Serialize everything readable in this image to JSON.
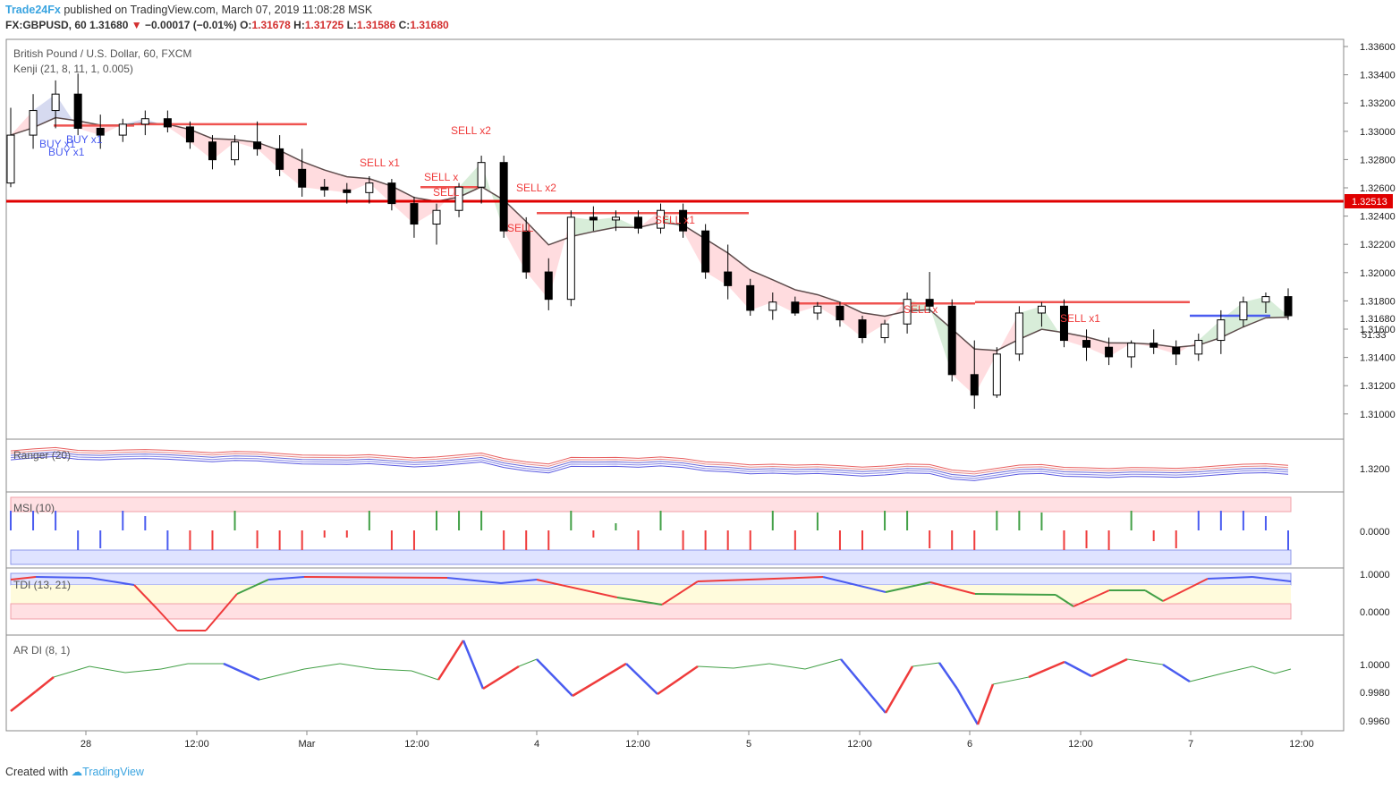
{
  "header": {
    "publisher": "Trade24Fx",
    "published_text": "published on TradingView.com, March 07, 2019 11:08:28 MSK",
    "symbol": "FX:GBPUSD, 60",
    "price": "1.31680",
    "change": "−0.00017 (−0.01%)",
    "o_label": "O:",
    "o": "1.31678",
    "h_label": "H:",
    "h": "1.31725",
    "l_label": "L:",
    "l": "1.31586",
    "c_label": "C:",
    "c": "1.31680"
  },
  "main_panel": {
    "title": "British Pound / U.S. Dollar, 60, FXCM",
    "indicator": "Kenji (21, 8, 11, 1, 0.005)"
  },
  "indicators": {
    "ranger": "Ranger (20)",
    "msi": "MSI (10)",
    "tdi": "TDI (13, 21)",
    "ardi": "AR DI (8, 1)"
  },
  "price_axis": {
    "labels": [
      "1.33600",
      "1.33400",
      "1.33200",
      "1.33000",
      "1.32800",
      "1.32600",
      "1.32400",
      "1.32200",
      "1.32000",
      "1.31800",
      "1.31600",
      "1.31400",
      "1.31200",
      "1.31000"
    ],
    "current": "1.31680",
    "countdown": "51:33",
    "support_label": "1.32513"
  },
  "sub_axes": {
    "ranger": [
      "1.3200"
    ],
    "msi": [
      "0.0000"
    ],
    "tdi": [
      "1.0000",
      "0.0000"
    ],
    "ardi": [
      "1.0000",
      "0.9980",
      "0.9960"
    ]
  },
  "time_axis": [
    "28",
    "12:00",
    "Mar",
    "12:00",
    "4",
    "12:00",
    "5",
    "12:00",
    "6",
    "12:00",
    "7",
    "12:00"
  ],
  "signals": [
    {
      "text": "BUY x1"
    },
    {
      "text": "BUY x1"
    },
    {
      "text": "BUY x1"
    },
    {
      "text": "SELL x1"
    },
    {
      "text": "SELL x"
    },
    {
      "text": "SELL"
    },
    {
      "text": "SELL x2"
    },
    {
      "text": "SELL x2"
    },
    {
      "text": "SELL"
    },
    {
      "text": "SELL x1"
    },
    {
      "text": "SELL x"
    },
    {
      "text": "SELL x1"
    }
  ],
  "footer": {
    "created_with": "Created with",
    "brand": "TradingView"
  },
  "colors": {
    "up_candle": "#ffffff",
    "down_candle": "#000000",
    "support_line": "#e00000",
    "resistance": "#ef5350",
    "buy_band": "#c5cae9",
    "sell_band": "#ffcdd2",
    "green_band": "#c8e6c9",
    "blue": "#4a5cf0",
    "red": "#ef3b3b",
    "green": "#43a047"
  },
  "chart_data": {
    "type": "candlestick",
    "title": "British Pound / U.S. Dollar, 60, FXCM",
    "ylim": [
      1.3085,
      1.337
    ],
    "support_level": 1.32513,
    "current_price": 1.3168,
    "xlabel": "",
    "ylabel": "",
    "ohlc_approx": [
      [
        1.3265,
        1.332,
        1.3262,
        1.33
      ],
      [
        1.33,
        1.333,
        1.329,
        1.3318
      ],
      [
        1.3318,
        1.334,
        1.3305,
        1.333
      ],
      [
        1.333,
        1.3345,
        1.33,
        1.3305
      ],
      [
        1.3305,
        1.3315,
        1.329,
        1.33
      ],
      [
        1.33,
        1.3312,
        1.3295,
        1.3308
      ],
      [
        1.3308,
        1.3318,
        1.33,
        1.3312
      ],
      [
        1.3312,
        1.3318,
        1.3302,
        1.3306
      ],
      [
        1.3306,
        1.331,
        1.329,
        1.3295
      ],
      [
        1.3295,
        1.33,
        1.3275,
        1.3282
      ],
      [
        1.3282,
        1.33,
        1.3278,
        1.3295
      ],
      [
        1.3295,
        1.331,
        1.3285,
        1.329
      ],
      [
        1.329,
        1.33,
        1.327,
        1.3275
      ],
      [
        1.3275,
        1.329,
        1.3255,
        1.3262
      ],
      [
        1.3262,
        1.3268,
        1.3255,
        1.326
      ],
      [
        1.326,
        1.3265,
        1.325,
        1.3258
      ],
      [
        1.3258,
        1.327,
        1.325,
        1.3265
      ],
      [
        1.3265,
        1.3268,
        1.3245,
        1.325
      ],
      [
        1.325,
        1.3255,
        1.3225,
        1.3235
      ],
      [
        1.3235,
        1.325,
        1.322,
        1.3245
      ],
      [
        1.3245,
        1.3265,
        1.324,
        1.3262
      ],
      [
        1.3262,
        1.3285,
        1.325,
        1.328
      ],
      [
        1.328,
        1.3285,
        1.3225,
        1.323
      ],
      [
        1.323,
        1.324,
        1.3195,
        1.32
      ],
      [
        1.32,
        1.321,
        1.3172,
        1.318
      ],
      [
        1.318,
        1.3245,
        1.3175,
        1.324
      ],
      [
        1.324,
        1.3248,
        1.323,
        1.3238
      ],
      [
        1.3238,
        1.3245,
        1.323,
        1.324
      ],
      [
        1.324,
        1.3245,
        1.3228,
        1.3232
      ],
      [
        1.3232,
        1.325,
        1.3228,
        1.3245
      ],
      [
        1.3245,
        1.325,
        1.3225,
        1.323
      ],
      [
        1.323,
        1.3235,
        1.3195,
        1.32
      ],
      [
        1.32,
        1.322,
        1.318,
        1.319
      ],
      [
        1.319,
        1.3195,
        1.3168,
        1.3172
      ],
      [
        1.3172,
        1.3185,
        1.3165,
        1.3178
      ],
      [
        1.3178,
        1.3182,
        1.3168,
        1.317
      ],
      [
        1.317,
        1.3178,
        1.3165,
        1.3175
      ],
      [
        1.3175,
        1.3178,
        1.316,
        1.3165
      ],
      [
        1.3165,
        1.3168,
        1.3148,
        1.3152
      ],
      [
        1.3152,
        1.3165,
        1.3148,
        1.3162
      ],
      [
        1.3162,
        1.3185,
        1.3155,
        1.318
      ],
      [
        1.318,
        1.32,
        1.317,
        1.3175
      ],
      [
        1.3175,
        1.318,
        1.312,
        1.3125
      ],
      [
        1.3125,
        1.315,
        1.31,
        1.311
      ],
      [
        1.311,
        1.3145,
        1.3108,
        1.314
      ],
      [
        1.314,
        1.3175,
        1.3135,
        1.317
      ],
      [
        1.317,
        1.3178,
        1.316,
        1.3175
      ],
      [
        1.3175,
        1.318,
        1.3145,
        1.315
      ],
      [
        1.315,
        1.3158,
        1.3135,
        1.3145
      ],
      [
        1.3145,
        1.3152,
        1.3132,
        1.3138
      ],
      [
        1.3138,
        1.315,
        1.313,
        1.3148
      ],
      [
        1.3148,
        1.3158,
        1.314,
        1.3145
      ],
      [
        1.3145,
        1.315,
        1.3132,
        1.314
      ],
      [
        1.314,
        1.3155,
        1.3135,
        1.315
      ],
      [
        1.315,
        1.3172,
        1.314,
        1.3165
      ],
      [
        1.3165,
        1.3182,
        1.316,
        1.3178
      ],
      [
        1.3178,
        1.3185,
        1.317,
        1.3182
      ],
      [
        1.3182,
        1.3188,
        1.3165,
        1.3168
      ]
    ]
  }
}
